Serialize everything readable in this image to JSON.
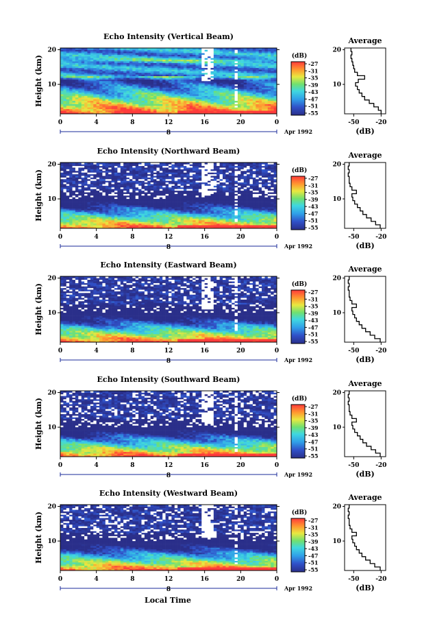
{
  "figure": {
    "bottom_xlabel": "Local Time",
    "date_label": "Apr 1992",
    "day_label": "8",
    "colorbar_unit": "(dB)",
    "colorbar_ticks": [
      "-27",
      "-31",
      "-35",
      "-39",
      "-43",
      "-47",
      "-51",
      "-55"
    ],
    "colors": {
      "background_noise": "#2a2f8a",
      "strong_echo": "#ff3a3a",
      "missing_data": "#ffffff"
    }
  },
  "chart_data": [
    {
      "type": "heatmap",
      "title": "Echo Intensity (Vertical Beam)",
      "ylabel": "Height (km)",
      "x_ticks": [
        "0",
        "4",
        "8",
        "12",
        "16",
        "20",
        "0"
      ],
      "y_ticks": [
        "20",
        "10"
      ],
      "xlim": [
        0,
        24
      ],
      "ylim": [
        1.5,
        20.5
      ],
      "clim": [
        -55,
        -27
      ],
      "colorbar_label": "(dB)",
      "profile": {
        "title": "Average",
        "xlabel": "(dB)",
        "x_ticks": [
          "-50",
          "-20"
        ],
        "y_ticks": [
          "20",
          "10"
        ],
        "xlim": [
          -60,
          -15
        ],
        "ylim": [
          1.5,
          20.5
        ],
        "height_km": [
          2,
          3,
          4,
          5,
          6,
          7,
          8,
          9,
          10,
          11,
          12,
          13,
          14,
          15,
          16,
          17,
          18,
          19,
          20
        ],
        "values_db": [
          -20,
          -23,
          -28,
          -33,
          -38,
          -41,
          -44,
          -46,
          -48,
          -45,
          -38,
          -46,
          -49,
          -50,
          -51,
          -52,
          -53,
          -52,
          -53
        ]
      }
    },
    {
      "type": "heatmap",
      "title": "Echo Intensity (Northward Beam)",
      "ylabel": "Height (km)",
      "x_ticks": [
        "0",
        "4",
        "8",
        "12",
        "16",
        "20",
        "0"
      ],
      "y_ticks": [
        "20",
        "10"
      ],
      "xlim": [
        0,
        24
      ],
      "ylim": [
        1.5,
        20.5
      ],
      "clim": [
        -55,
        -27
      ],
      "colorbar_label": "(dB)",
      "profile": {
        "title": "Average",
        "xlabel": "(dB)",
        "x_ticks": [
          "-50",
          "-20"
        ],
        "y_ticks": [
          "20",
          "10"
        ],
        "xlim": [
          -60,
          -15
        ],
        "ylim": [
          1.5,
          20.5
        ],
        "height_km": [
          2,
          3,
          4,
          5,
          6,
          7,
          8,
          9,
          10,
          11,
          12,
          13,
          14,
          15,
          16,
          17,
          18,
          19,
          20
        ],
        "values_db": [
          -21,
          -26,
          -31,
          -36,
          -40,
          -43,
          -46,
          -49,
          -51,
          -52,
          -47,
          -52,
          -54,
          -55,
          -55,
          -56,
          -55,
          -56,
          -55
        ]
      }
    },
    {
      "type": "heatmap",
      "title": "Echo Intensity (Eastward Beam)",
      "ylabel": "Height (km)",
      "x_ticks": [
        "0",
        "4",
        "8",
        "12",
        "16",
        "20",
        "0"
      ],
      "y_ticks": [
        "20",
        "10"
      ],
      "xlim": [
        0,
        24
      ],
      "ylim": [
        1.5,
        20.5
      ],
      "clim": [
        -55,
        -27
      ],
      "colorbar_label": "(dB)",
      "profile": {
        "title": "Average",
        "xlabel": "(dB)",
        "x_ticks": [
          "-50",
          "-20"
        ],
        "y_ticks": [
          "20",
          "10"
        ],
        "xlim": [
          -60,
          -15
        ],
        "ylim": [
          1.5,
          20.5
        ],
        "height_km": [
          2,
          3,
          4,
          5,
          6,
          7,
          8,
          9,
          10,
          11,
          12,
          13,
          14,
          15,
          16,
          17,
          18,
          19,
          20
        ],
        "values_db": [
          -21,
          -27,
          -32,
          -37,
          -41,
          -44,
          -47,
          -49,
          -51,
          -52,
          -47,
          -52,
          -54,
          -55,
          -55,
          -56,
          -55,
          -56,
          -55
        ]
      }
    },
    {
      "type": "heatmap",
      "title": "Echo Intensity (Southward Beam)",
      "ylabel": "Height (km)",
      "x_ticks": [
        "0",
        "4",
        "8",
        "12",
        "16",
        "20",
        "0"
      ],
      "y_ticks": [
        "20",
        "10"
      ],
      "xlim": [
        0,
        24
      ],
      "ylim": [
        1.5,
        20.5
      ],
      "clim": [
        -55,
        -27
      ],
      "colorbar_label": "(dB)",
      "profile": {
        "title": "Average",
        "xlabel": "(dB)",
        "x_ticks": [
          "-50",
          "-20"
        ],
        "y_ticks": [
          "20",
          "10"
        ],
        "xlim": [
          -60,
          -15
        ],
        "ylim": [
          1.5,
          20.5
        ],
        "height_km": [
          2,
          3,
          4,
          5,
          6,
          7,
          8,
          9,
          10,
          11,
          12,
          13,
          14,
          15,
          16,
          17,
          18,
          19,
          20
        ],
        "values_db": [
          -21,
          -26,
          -31,
          -36,
          -40,
          -43,
          -46,
          -49,
          -51,
          -52,
          -47,
          -52,
          -54,
          -55,
          -55,
          -56,
          -55,
          -56,
          -55
        ]
      }
    },
    {
      "type": "heatmap",
      "title": "Echo Intensity (Westward Beam)",
      "ylabel": "Height (km)",
      "x_ticks": [
        "0",
        "4",
        "8",
        "12",
        "16",
        "20",
        "0"
      ],
      "y_ticks": [
        "20",
        "10"
      ],
      "xlim": [
        0,
        24
      ],
      "ylim": [
        1.5,
        20.5
      ],
      "clim": [
        -55,
        -27
      ],
      "colorbar_label": "(dB)",
      "profile": {
        "title": "Average",
        "xlabel": "(dB)",
        "x_ticks": [
          "-50",
          "-20"
        ],
        "y_ticks": [
          "20",
          "10"
        ],
        "xlim": [
          -60,
          -15
        ],
        "ylim": [
          1.5,
          20.5
        ],
        "height_km": [
          2,
          3,
          4,
          5,
          6,
          7,
          8,
          9,
          10,
          11,
          12,
          13,
          14,
          15,
          16,
          17,
          18,
          19,
          20
        ],
        "values_db": [
          -21,
          -27,
          -32,
          -37,
          -41,
          -44,
          -47,
          -49,
          -51,
          -52,
          -47,
          -52,
          -54,
          -55,
          -55,
          -56,
          -55,
          -56,
          -55
        ]
      }
    }
  ]
}
